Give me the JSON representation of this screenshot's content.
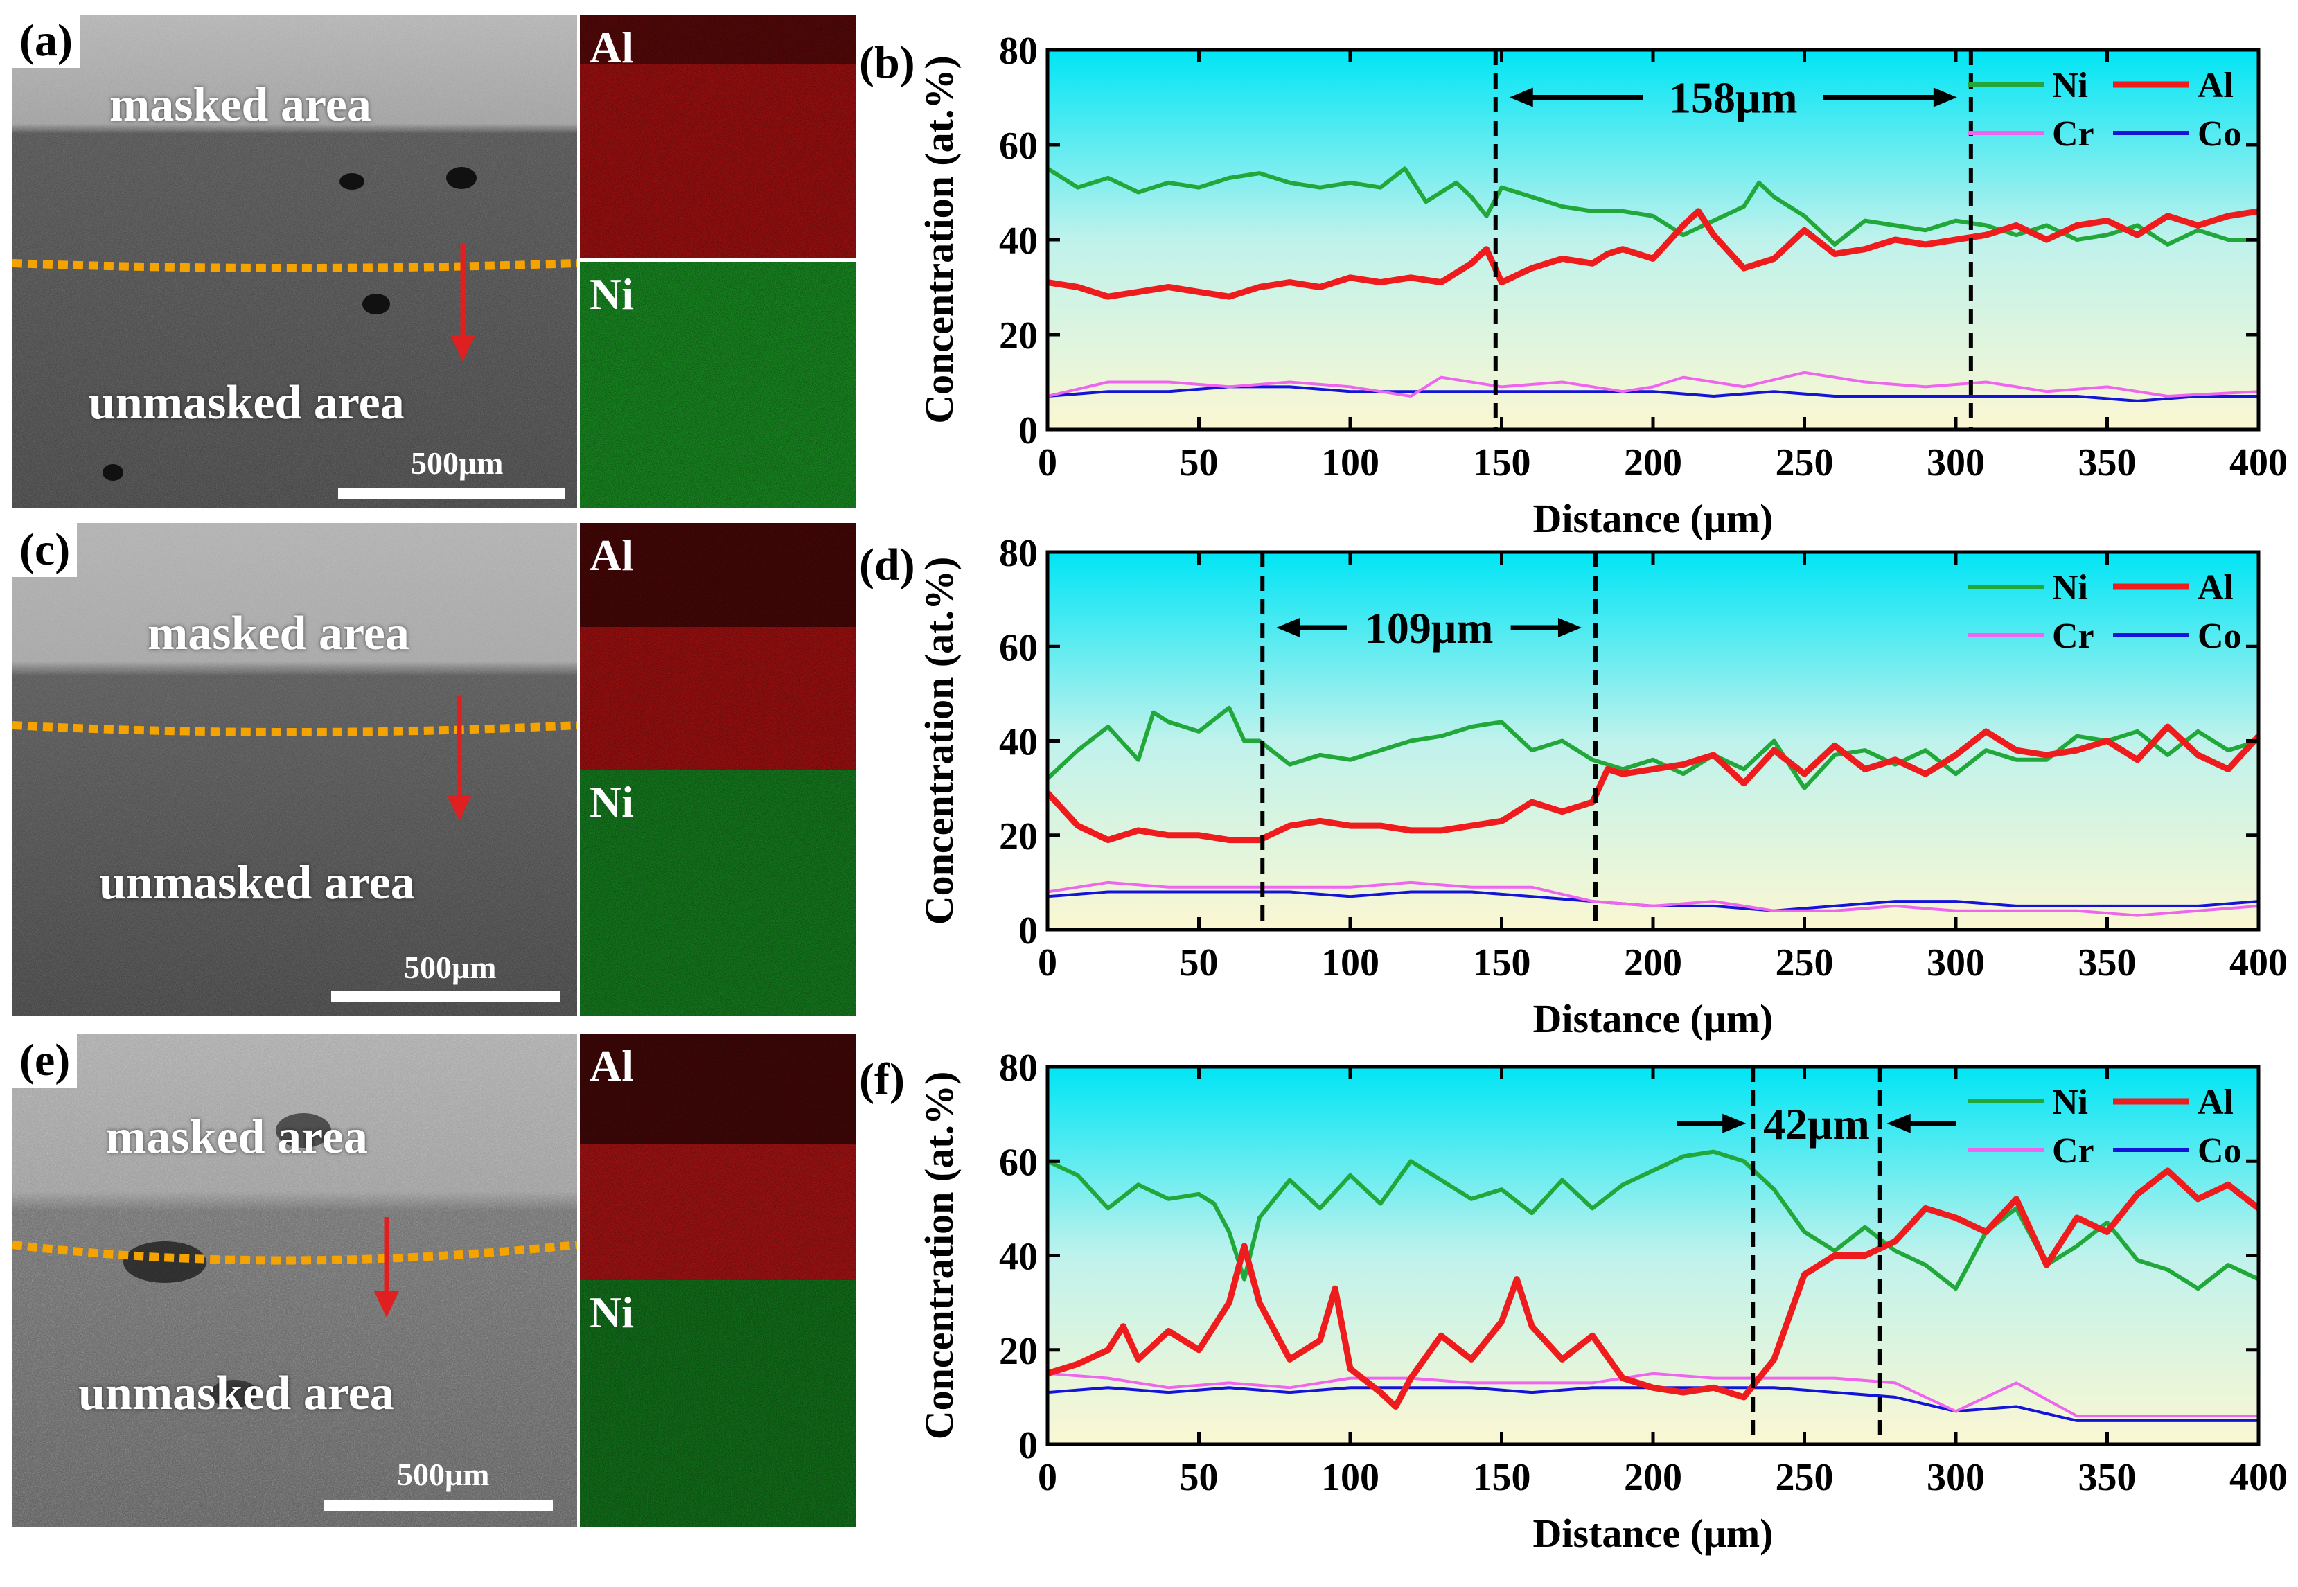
{
  "panels": [
    {
      "sem_letter": "(a)",
      "masked": "masked area",
      "unmasked": "unmasked area",
      "scale": "500μm",
      "map_top": "Al",
      "map_bottom": "Ni"
    },
    {
      "sem_letter": "(c)",
      "masked": "masked area",
      "unmasked": "unmasked area",
      "scale": "500μm",
      "map_top": "Al",
      "map_bottom": "Ni"
    },
    {
      "sem_letter": "(e)",
      "masked": "masked area",
      "unmasked": "unmasked area",
      "scale": "500μm",
      "map_top": "Al",
      "map_bottom": "Ni"
    }
  ],
  "colors": {
    "Ni": "#22a83a",
    "Al": "#ee1c1c",
    "Cr": "#ee66ee",
    "Co": "#1414d8",
    "boundary": "#f5a300",
    "arrow": "#e02020"
  },
  "chart_data": [
    {
      "letter": "(b)",
      "type": "line",
      "xlabel": "Distance (μm)",
      "ylabel": "Concentration (at.%)",
      "xlim": [
        0,
        400
      ],
      "ylim": [
        0,
        80
      ],
      "xticks": [
        0,
        50,
        100,
        150,
        200,
        250,
        300,
        350,
        400
      ],
      "yticks": [
        0,
        20,
        40,
        60,
        80
      ],
      "vlines": [
        148,
        305
      ],
      "annotation": {
        "text": "158μm",
        "from": 148,
        "to": 305,
        "y": 70,
        "style": "outward"
      },
      "legend": [
        "Ni",
        "Al",
        "Cr",
        "Co"
      ],
      "series": [
        {
          "name": "Ni",
          "x": [
            0,
            10,
            20,
            30,
            40,
            50,
            60,
            70,
            80,
            90,
            100,
            110,
            118,
            125,
            135,
            140,
            145,
            150,
            160,
            170,
            180,
            190,
            200,
            210,
            220,
            230,
            235,
            240,
            250,
            260,
            270,
            280,
            290,
            300,
            310,
            320,
            330,
            340,
            350,
            360,
            370,
            380,
            390,
            400
          ],
          "y": [
            55,
            51,
            53,
            50,
            52,
            51,
            53,
            54,
            52,
            51,
            52,
            51,
            55,
            48,
            52,
            49,
            45,
            51,
            49,
            47,
            46,
            46,
            45,
            41,
            44,
            47,
            52,
            49,
            45,
            39,
            44,
            43,
            42,
            44,
            43,
            41,
            43,
            40,
            41,
            43,
            39,
            42,
            40,
            40
          ]
        },
        {
          "name": "Al",
          "x": [
            0,
            10,
            20,
            30,
            40,
            50,
            60,
            70,
            80,
            90,
            100,
            110,
            120,
            130,
            135,
            140,
            145,
            150,
            160,
            170,
            180,
            185,
            190,
            200,
            210,
            215,
            220,
            230,
            240,
            250,
            260,
            270,
            280,
            290,
            300,
            310,
            320,
            330,
            340,
            350,
            360,
            370,
            380,
            390,
            400
          ],
          "y": [
            31,
            30,
            28,
            29,
            30,
            29,
            28,
            30,
            31,
            30,
            32,
            31,
            32,
            31,
            33,
            35,
            38,
            31,
            34,
            36,
            35,
            37,
            38,
            36,
            43,
            46,
            41,
            34,
            36,
            42,
            37,
            38,
            40,
            39,
            40,
            41,
            43,
            40,
            43,
            44,
            41,
            45,
            43,
            45,
            46
          ]
        },
        {
          "name": "Cr",
          "x": [
            0,
            20,
            40,
            60,
            80,
            100,
            110,
            120,
            130,
            150,
            170,
            190,
            200,
            210,
            230,
            250,
            270,
            290,
            310,
            330,
            350,
            370,
            400
          ],
          "y": [
            7,
            10,
            10,
            9,
            10,
            9,
            8,
            7,
            11,
            9,
            10,
            8,
            9,
            11,
            9,
            12,
            10,
            9,
            10,
            8,
            9,
            7,
            8
          ]
        },
        {
          "name": "Co",
          "x": [
            0,
            20,
            40,
            60,
            80,
            100,
            120,
            140,
            160,
            180,
            200,
            220,
            240,
            260,
            280,
            300,
            320,
            340,
            360,
            380,
            400
          ],
          "y": [
            7,
            8,
            8,
            9,
            9,
            8,
            8,
            8,
            8,
            8,
            8,
            7,
            8,
            7,
            7,
            7,
            7,
            7,
            6,
            7,
            7
          ]
        }
      ]
    },
    {
      "letter": "(d)",
      "type": "line",
      "xlabel": "Distance (μm)",
      "ylabel": "Concentration (at.%)",
      "xlim": [
        0,
        400
      ],
      "ylim": [
        0,
        80
      ],
      "xticks": [
        0,
        50,
        100,
        150,
        200,
        250,
        300,
        350,
        400
      ],
      "yticks": [
        0,
        20,
        40,
        60,
        80
      ],
      "vlines": [
        71,
        181
      ],
      "annotation": {
        "text": "109μm",
        "from": 71,
        "to": 181,
        "y": 64,
        "style": "outward"
      },
      "legend": [
        "Ni",
        "Al",
        "Cr",
        "Co"
      ],
      "series": [
        {
          "name": "Ni",
          "x": [
            0,
            10,
            20,
            30,
            35,
            40,
            50,
            60,
            65,
            70,
            80,
            90,
            100,
            110,
            120,
            130,
            140,
            150,
            160,
            170,
            180,
            190,
            200,
            210,
            220,
            230,
            240,
            250,
            260,
            270,
            280,
            290,
            300,
            310,
            320,
            330,
            340,
            350,
            360,
            370,
            380,
            390,
            400
          ],
          "y": [
            32,
            38,
            43,
            36,
            46,
            44,
            42,
            47,
            40,
            40,
            35,
            37,
            36,
            38,
            40,
            41,
            43,
            44,
            38,
            40,
            36,
            34,
            36,
            33,
            37,
            34,
            40,
            30,
            37,
            38,
            35,
            38,
            33,
            38,
            36,
            36,
            41,
            40,
            42,
            37,
            42,
            38,
            40
          ]
        },
        {
          "name": "Al",
          "x": [
            0,
            10,
            20,
            30,
            40,
            50,
            60,
            70,
            80,
            90,
            100,
            110,
            120,
            130,
            140,
            150,
            160,
            170,
            180,
            185,
            190,
            200,
            210,
            220,
            230,
            240,
            250,
            260,
            270,
            280,
            290,
            300,
            310,
            320,
            330,
            340,
            350,
            360,
            370,
            380,
            390,
            400
          ],
          "y": [
            29,
            22,
            19,
            21,
            20,
            20,
            19,
            19,
            22,
            23,
            22,
            22,
            21,
            21,
            22,
            23,
            27,
            25,
            27,
            34,
            33,
            34,
            35,
            37,
            31,
            38,
            33,
            39,
            34,
            36,
            33,
            37,
            42,
            38,
            37,
            38,
            40,
            36,
            43,
            37,
            34,
            41
          ]
        },
        {
          "name": "Cr",
          "x": [
            0,
            20,
            40,
            60,
            80,
            100,
            120,
            140,
            160,
            180,
            200,
            220,
            240,
            260,
            280,
            300,
            320,
            340,
            360,
            380,
            400
          ],
          "y": [
            8,
            10,
            9,
            9,
            9,
            9,
            10,
            9,
            9,
            6,
            5,
            6,
            4,
            4,
            5,
            4,
            4,
            4,
            3,
            4,
            5
          ]
        },
        {
          "name": "Co",
          "x": [
            0,
            20,
            40,
            60,
            80,
            100,
            120,
            140,
            160,
            180,
            200,
            220,
            240,
            260,
            280,
            300,
            320,
            340,
            360,
            380,
            400
          ],
          "y": [
            7,
            8,
            8,
            8,
            8,
            7,
            8,
            8,
            7,
            6,
            5,
            5,
            4,
            5,
            6,
            6,
            5,
            5,
            5,
            5,
            6
          ]
        }
      ]
    },
    {
      "letter": "(f)",
      "type": "line",
      "xlabel": "Distance (μm)",
      "ylabel": "Concentration (at.%)",
      "xlim": [
        0,
        400
      ],
      "ylim": [
        0,
        80
      ],
      "xticks": [
        0,
        50,
        100,
        150,
        200,
        250,
        300,
        350,
        400
      ],
      "yticks": [
        0,
        20,
        40,
        60,
        80
      ],
      "vlines": [
        233,
        275
      ],
      "annotation": {
        "text": "42μm",
        "from": 233,
        "to": 275,
        "y": 68,
        "style": "inward"
      },
      "legend": [
        "Ni",
        "Al",
        "Cr",
        "Co"
      ],
      "series": [
        {
          "name": "Ni",
          "x": [
            0,
            10,
            20,
            30,
            40,
            50,
            55,
            60,
            65,
            70,
            80,
            90,
            100,
            110,
            120,
            130,
            140,
            150,
            160,
            170,
            180,
            190,
            200,
            210,
            220,
            230,
            240,
            250,
            260,
            270,
            280,
            290,
            300,
            310,
            320,
            330,
            340,
            350,
            360,
            370,
            380,
            390,
            400
          ],
          "y": [
            60,
            57,
            50,
            55,
            52,
            53,
            51,
            45,
            35,
            48,
            56,
            50,
            57,
            51,
            60,
            56,
            52,
            54,
            49,
            56,
            50,
            55,
            58,
            61,
            62,
            60,
            54,
            45,
            41,
            46,
            41,
            38,
            33,
            45,
            50,
            38,
            42,
            47,
            39,
            37,
            33,
            38,
            35
          ]
        },
        {
          "name": "Al",
          "x": [
            0,
            10,
            20,
            25,
            30,
            40,
            50,
            60,
            65,
            70,
            80,
            90,
            95,
            100,
            110,
            115,
            120,
            130,
            140,
            150,
            155,
            160,
            170,
            180,
            190,
            200,
            210,
            220,
            230,
            240,
            250,
            260,
            270,
            280,
            290,
            300,
            310,
            320,
            330,
            340,
            350,
            360,
            370,
            380,
            390,
            400
          ],
          "y": [
            15,
            17,
            20,
            25,
            18,
            24,
            20,
            30,
            42,
            30,
            18,
            22,
            33,
            16,
            11,
            8,
            14,
            23,
            18,
            26,
            35,
            25,
            18,
            23,
            14,
            12,
            11,
            12,
            10,
            18,
            36,
            40,
            40,
            43,
            50,
            48,
            45,
            52,
            38,
            48,
            45,
            53,
            58,
            52,
            55,
            50
          ]
        },
        {
          "name": "Cr",
          "x": [
            0,
            20,
            40,
            60,
            80,
            100,
            120,
            140,
            160,
            180,
            200,
            220,
            240,
            260,
            280,
            300,
            320,
            340,
            360,
            380,
            400
          ],
          "y": [
            15,
            14,
            12,
            13,
            12,
            14,
            14,
            13,
            13,
            13,
            15,
            14,
            14,
            14,
            13,
            7,
            13,
            6,
            6,
            6,
            6
          ]
        },
        {
          "name": "Co",
          "x": [
            0,
            20,
            40,
            60,
            80,
            100,
            120,
            140,
            160,
            180,
            200,
            220,
            240,
            260,
            280,
            300,
            320,
            340,
            360,
            380,
            400
          ],
          "y": [
            11,
            12,
            11,
            12,
            11,
            12,
            12,
            12,
            11,
            12,
            12,
            12,
            12,
            11,
            10,
            7,
            8,
            5,
            5,
            5,
            5
          ]
        }
      ]
    }
  ]
}
